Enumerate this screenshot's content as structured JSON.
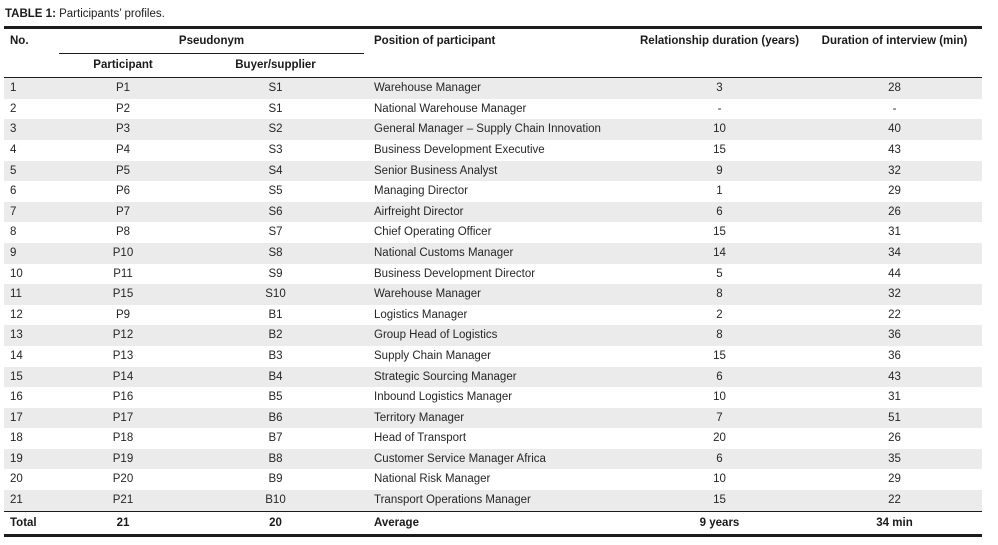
{
  "title": {
    "label": "TABLE 1:",
    "text": "Participants’ profiles."
  },
  "table": {
    "headers": {
      "no": "No.",
      "pseudonym_group": "Pseudonym",
      "participant": "Participant",
      "buyer_supplier": "Buyer/supplier",
      "position": "Position of participant",
      "relationship_duration": "Relationship duration (years)",
      "interview_duration": "Duration of interview (min)"
    },
    "rows": [
      {
        "no": "1",
        "participant": "P1",
        "buyer": "S1",
        "position": "Warehouse Manager",
        "relationship": "3",
        "interview": "28"
      },
      {
        "no": "2",
        "participant": "P2",
        "buyer": "S1",
        "position": "National Warehouse Manager",
        "relationship": "-",
        "interview": "-"
      },
      {
        "no": "3",
        "participant": "P3",
        "buyer": "S2",
        "position": "General Manager – Supply Chain Innovation",
        "relationship": "10",
        "interview": "40"
      },
      {
        "no": "4",
        "participant": "P4",
        "buyer": "S3",
        "position": "Business Development Executive",
        "relationship": "15",
        "interview": "43"
      },
      {
        "no": "5",
        "participant": "P5",
        "buyer": "S4",
        "position": "Senior Business Analyst",
        "relationship": "9",
        "interview": "32"
      },
      {
        "no": "6",
        "participant": "P6",
        "buyer": "S5",
        "position": "Managing Director",
        "relationship": "1",
        "interview": "29"
      },
      {
        "no": "7",
        "participant": "P7",
        "buyer": "S6",
        "position": "Airfreight Director",
        "relationship": "6",
        "interview": "26"
      },
      {
        "no": "8",
        "participant": "P8",
        "buyer": "S7",
        "position": "Chief Operating Officer",
        "relationship": "15",
        "interview": "31"
      },
      {
        "no": "9",
        "participant": "P10",
        "buyer": "S8",
        "position": "National Customs Manager",
        "relationship": "14",
        "interview": "34"
      },
      {
        "no": "10",
        "participant": "P11",
        "buyer": "S9",
        "position": "Business Development Director",
        "relationship": "5",
        "interview": "44"
      },
      {
        "no": "11",
        "participant": "P15",
        "buyer": "S10",
        "position": "Warehouse Manager",
        "relationship": "8",
        "interview": "32"
      },
      {
        "no": "12",
        "participant": "P9",
        "buyer": "B1",
        "position": "Logistics Manager",
        "relationship": "2",
        "interview": "22"
      },
      {
        "no": "13",
        "participant": "P12",
        "buyer": "B2",
        "position": "Group Head of Logistics",
        "relationship": "8",
        "interview": "36"
      },
      {
        "no": "14",
        "participant": "P13",
        "buyer": "B3",
        "position": "Supply Chain Manager",
        "relationship": "15",
        "interview": "36"
      },
      {
        "no": "15",
        "participant": "P14",
        "buyer": "B4",
        "position": "Strategic Sourcing Manager",
        "relationship": "6",
        "interview": "43"
      },
      {
        "no": "16",
        "participant": "P16",
        "buyer": "B5",
        "position": "Inbound Logistics Manager",
        "relationship": "10",
        "interview": "31"
      },
      {
        "no": "17",
        "participant": "P17",
        "buyer": "B6",
        "position": "Territory Manager",
        "relationship": "7",
        "interview": "51"
      },
      {
        "no": "18",
        "participant": "P18",
        "buyer": "B7",
        "position": "Head of Transport",
        "relationship": "20",
        "interview": "26"
      },
      {
        "no": "19",
        "participant": "P19",
        "buyer": "B8",
        "position": "Customer Service Manager Africa",
        "relationship": "6",
        "interview": "35"
      },
      {
        "no": "20",
        "participant": "P20",
        "buyer": "B9",
        "position": "National Risk Manager",
        "relationship": "10",
        "interview": "29"
      },
      {
        "no": "21",
        "participant": "P21",
        "buyer": "B10",
        "position": "Transport Operations Manager",
        "relationship": "15",
        "interview": "22"
      }
    ],
    "total": {
      "no": "Total",
      "participant": "21",
      "buyer": "20",
      "position": "Average",
      "relationship": "9 years",
      "interview": "34 min"
    }
  },
  "colors": {
    "stripe": "#ebebeb",
    "text": "#262626",
    "border": "#1c1c1c",
    "background": "#ffffff"
  }
}
